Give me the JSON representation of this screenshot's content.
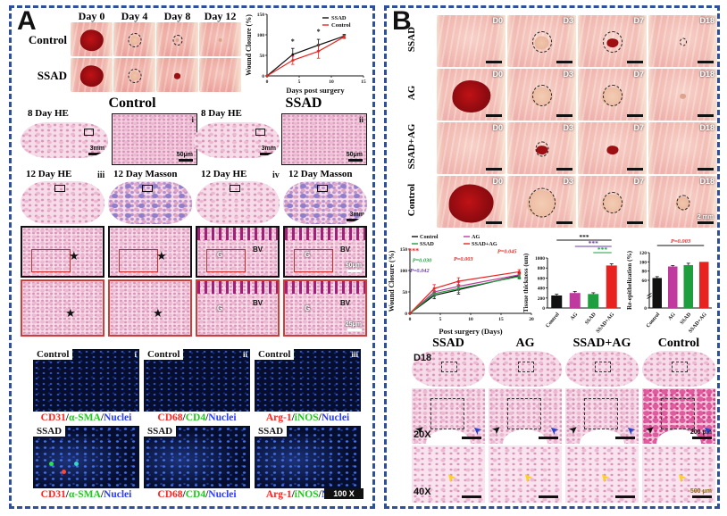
{
  "panel_a": {
    "label": "A",
    "wound_photos": {
      "col_headers": [
        "Day 0",
        "Day 4",
        "Day 8",
        "Day 12"
      ],
      "rows": [
        {
          "label": "Control",
          "cells": [
            {
              "blob": "red-l"
            },
            {
              "ring": "m",
              "blob": "pale-s"
            },
            {
              "ring": "s",
              "blob": "dot"
            },
            {
              "blob": "dot"
            }
          ]
        },
        {
          "label": "SSAD",
          "cells": [
            {
              "blob": "red-l"
            },
            {
              "ring": "m",
              "blob": "pale-s"
            },
            {
              "blob": "red-s"
            },
            {}
          ]
        }
      ]
    },
    "histology": {
      "group_headers": [
        "Control",
        "SSAD"
      ],
      "day8": [
        {
          "label": "8 Day HE",
          "tissue_scale": "3mm",
          "inset_scale": "50μm",
          "numeral": "i"
        },
        {
          "label": "8 Day HE",
          "tissue_scale": "3mm",
          "inset_scale": "50μm",
          "numeral": "ii"
        }
      ],
      "day12": [
        {
          "label": "12 Day HE",
          "numeral": "iii"
        },
        {
          "label": "12 Day Masson",
          "numeral": ""
        },
        {
          "label": "12 Day HE",
          "numeral": "iv"
        },
        {
          "label": "12 Day Masson",
          "numeral": "",
          "scale": "3mm"
        }
      ],
      "mag_rows": [
        {
          "border": "black",
          "scale": "50μm",
          "cells": [
            [
              "★"
            ],
            [
              "★"
            ],
            [
              "G",
              "BV"
            ],
            [
              "G",
              "BV"
            ]
          ]
        },
        {
          "border": "red",
          "scale": "25μm",
          "cells": [
            [
              "★"
            ],
            [
              "★"
            ],
            [
              "G",
              "BV"
            ],
            [
              "G",
              "BV"
            ]
          ]
        }
      ]
    },
    "immunofluorescence": {
      "row_labels": [
        "Control",
        "SSAD"
      ],
      "numerals": [
        "i",
        "ii",
        "iii"
      ],
      "captions": [
        [
          [
            "CD31",
            "#ff2420"
          ],
          [
            "/",
            "#111111"
          ],
          [
            "α-SMA",
            "#1ec81e"
          ],
          [
            "/",
            "#111111"
          ],
          [
            "Nuclei",
            "#2b3cff"
          ]
        ],
        [
          [
            "CD68",
            "#ff2420"
          ],
          [
            "/",
            "#111111"
          ],
          [
            "CD4",
            "#1ec81e"
          ],
          [
            "/",
            "#111111"
          ],
          [
            "Nuclei",
            "#2b3cff"
          ]
        ],
        [
          [
            "Arg-1",
            "#ff2420"
          ],
          [
            "/",
            "#111111"
          ],
          [
            "iNOS",
            "#1ec81e"
          ],
          [
            "/",
            "#111111"
          ],
          [
            "Nuclei",
            "#2b3cff"
          ]
        ]
      ],
      "magnification": "100 X"
    }
  },
  "panel_b": {
    "label": "B",
    "wound_photos": {
      "rows": [
        {
          "label": "SSAD",
          "cells": [
            {
              "d": "D0"
            },
            {
              "d": "D3",
              "ring": "m",
              "blob": "pale-s"
            },
            {
              "d": "D7",
              "ring": "m",
              "blob": "red-s"
            },
            {
              "d": "D18",
              "ring": "dot"
            }
          ]
        },
        {
          "label": "AG",
          "cells": [
            {
              "d": "D0",
              "blob": "red-l"
            },
            {
              "d": "D3",
              "ring": "m",
              "blob": "pale-m"
            },
            {
              "d": "D7",
              "ring": "m",
              "blob": "pale-m"
            },
            {
              "d": "D18",
              "blob": "dot"
            }
          ]
        },
        {
          "label": "SSAD+AG",
          "cells": [
            {
              "d": "D0"
            },
            {
              "d": "D3",
              "ring": "s",
              "blob": "red-s"
            },
            {
              "d": "D7",
              "blob": "red-s"
            },
            {
              "d": "D18"
            }
          ]
        },
        {
          "label": "Control",
          "cells": [
            {
              "d": "D0",
              "blob": "red-xl"
            },
            {
              "d": "D3",
              "ring": "l",
              "blob": "pale-l"
            },
            {
              "d": "D7",
              "ring": "m",
              "blob": "pale-m"
            },
            {
              "d": "D18",
              "ring": "s",
              "blob": "pale-s",
              "scale_text": "2 mm"
            }
          ]
        }
      ]
    },
    "histology": {
      "col_headers": [
        "SSAD",
        "AG",
        "SSAD+AG",
        "Control"
      ],
      "row_labels": [
        "D18",
        "20X",
        "40X"
      ],
      "scale_20x": "200 μm",
      "scale_40x": "500 μm"
    }
  },
  "chart_data": [
    {
      "id": "panel_a_wound_closure",
      "type": "line",
      "xlabel": "Days post surgery",
      "ylabel": "Wound Closure (%)",
      "xlim": [
        0,
        15
      ],
      "ylim": [
        0,
        150
      ],
      "xticks": [
        0,
        5,
        10,
        15
      ],
      "yticks": [
        0,
        50,
        100,
        150
      ],
      "legend_position": "top-right inside",
      "series": [
        {
          "name": "SSAD",
          "color": "#111111",
          "x": [
            0,
            4,
            8,
            12
          ],
          "y": [
            0,
            52,
            75,
            97
          ],
          "err": [
            0,
            15,
            14,
            4
          ]
        },
        {
          "name": "Control",
          "color": "#e8231f",
          "x": [
            0,
            4,
            8,
            12
          ],
          "y": [
            0,
            38,
            60,
            95
          ],
          "err": [
            0,
            10,
            17,
            4
          ]
        }
      ],
      "annotations": [
        {
          "text": "*",
          "x": 4,
          "y": 78,
          "color": "#111111"
        },
        {
          "text": "*",
          "x": 8,
          "y": 102,
          "color": "#111111"
        }
      ]
    },
    {
      "id": "panel_b_wound_closure",
      "type": "line",
      "xlabel": "Post surgery (Days)",
      "ylabel": "Wound Closure (%)",
      "xlim": [
        0,
        20
      ],
      "ylim": [
        0,
        150
      ],
      "xticks": [
        0,
        5,
        10,
        15,
        20
      ],
      "yticks": [
        0,
        50,
        100,
        150
      ],
      "legend_position": "two-column top",
      "series": [
        {
          "name": "Control",
          "color": "#111111",
          "x": [
            0,
            4,
            8,
            18
          ],
          "y": [
            0,
            42,
            55,
            88
          ],
          "err": [
            0,
            8,
            10,
            6
          ]
        },
        {
          "name": "AG",
          "color": "#c0399f",
          "x": [
            0,
            4,
            8,
            18
          ],
          "y": [
            0,
            50,
            63,
            90
          ],
          "err": [
            0,
            8,
            9,
            6
          ]
        },
        {
          "name": "SSAD",
          "color": "#1e9e3e",
          "x": [
            0,
            4,
            8,
            18
          ],
          "y": [
            0,
            46,
            58,
            86
          ],
          "err": [
            0,
            7,
            9,
            6
          ]
        },
        {
          "name": "SSAD+AG",
          "color": "#e8231f",
          "x": [
            0,
            4,
            8,
            18
          ],
          "y": [
            0,
            58,
            75,
            97
          ],
          "err": [
            0,
            9,
            8,
            5
          ]
        }
      ],
      "annotations": [
        {
          "text": "***",
          "rx": 0.03,
          "ry": 0.06,
          "color": "#e8231f"
        },
        {
          "text": "P=0.030",
          "rx": 0.02,
          "ry": 0.2,
          "color": "#1e9e3e"
        },
        {
          "text": "P=0.042",
          "rx": 0.0,
          "ry": 0.36,
          "color": "#6a3ab0"
        },
        {
          "text": "P=0.003",
          "rx": 0.36,
          "ry": 0.18,
          "color": "#e8231f"
        },
        {
          "text": "P=0.045",
          "rx": 0.72,
          "ry": 0.06,
          "color": "#e8231f"
        }
      ]
    },
    {
      "id": "tissue_thickness",
      "type": "bar",
      "ylabel": "Tissue thickness (um)",
      "categories": [
        "Control",
        "AG",
        "SSAD",
        "SSAD+AG"
      ],
      "values": [
        250,
        300,
        280,
        850
      ],
      "errors": [
        25,
        30,
        25,
        35
      ],
      "colors": [
        "#111111",
        "#c0399f",
        "#1e9e3e",
        "#e8231f"
      ],
      "ylim": [
        0,
        1000
      ],
      "yticks": [
        0,
        200,
        400,
        600,
        800,
        1000
      ],
      "significance": [
        {
          "from": 0,
          "to": 3,
          "label": "***",
          "color": "#111111"
        },
        {
          "from": 1,
          "to": 3,
          "label": "***",
          "color": "#6a3ab0"
        },
        {
          "from": 2,
          "to": 3,
          "label": "***",
          "color": "#1e9e3e"
        }
      ]
    },
    {
      "id": "re_epithelization",
      "type": "bar",
      "ylabel": "Re-epithelization (%)",
      "categories": [
        "Control",
        "AG",
        "SSAD",
        "SSAD+AG"
      ],
      "values": [
        65,
        90,
        93,
        100
      ],
      "errors": [
        3,
        2,
        4,
        0
      ],
      "colors": [
        "#111111",
        "#c0399f",
        "#1e9e3e",
        "#e8231f"
      ],
      "ylim": [
        0,
        120
      ],
      "yticks": [
        0,
        60,
        80,
        100,
        120
      ],
      "axis_break": true,
      "significance": [
        {
          "from": 0,
          "to": 3,
          "label": "P=0.003",
          "color": "#111111",
          "label_color": "#e8231f"
        }
      ]
    }
  ]
}
